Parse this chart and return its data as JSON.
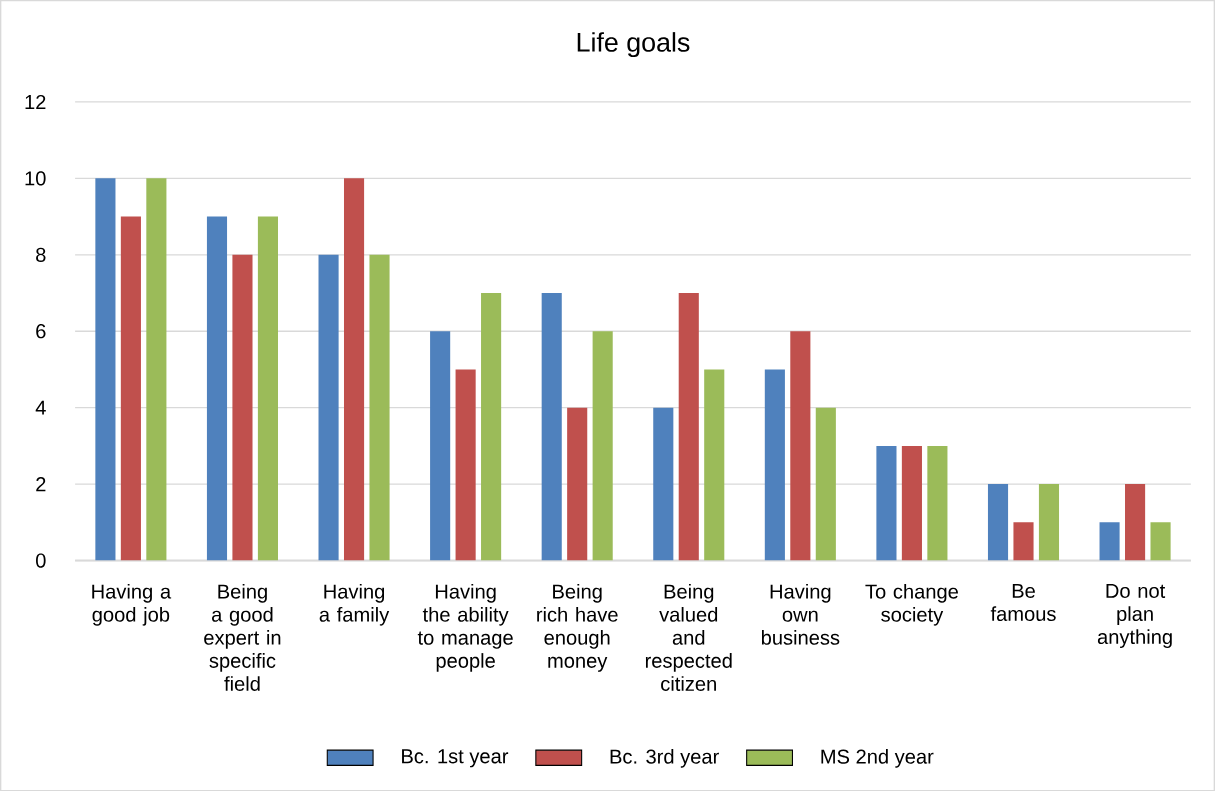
{
  "chart_data": {
    "type": "bar",
    "title": "Life goals",
    "categories": [
      "Having a good job",
      "Being a good expert in specific field",
      "Having a family",
      "Having the ability to manage people",
      "Being rich have enough money",
      "Being valued and respected citizen",
      "Having own business",
      "To change society",
      "Be famous",
      "Do not plan anything"
    ],
    "series": [
      {
        "name": "Bc. 1st year",
        "color": "#4f81bd",
        "values": [
          10,
          9,
          8,
          6,
          7,
          4,
          5,
          3,
          2,
          1
        ]
      },
      {
        "name": "Bc. 3rd year",
        "color": "#c0504d",
        "values": [
          9,
          8,
          10,
          5,
          4,
          7,
          6,
          3,
          1,
          2
        ]
      },
      {
        "name": "MS 2nd year",
        "color": "#9bbb59",
        "values": [
          10,
          9,
          8,
          7,
          6,
          5,
          4,
          3,
          2,
          1
        ]
      }
    ],
    "ylim": [
      0,
      12
    ],
    "yticks": [
      0,
      2,
      4,
      6,
      8,
      10,
      12
    ],
    "grid": "y",
    "legend": "bottom"
  }
}
